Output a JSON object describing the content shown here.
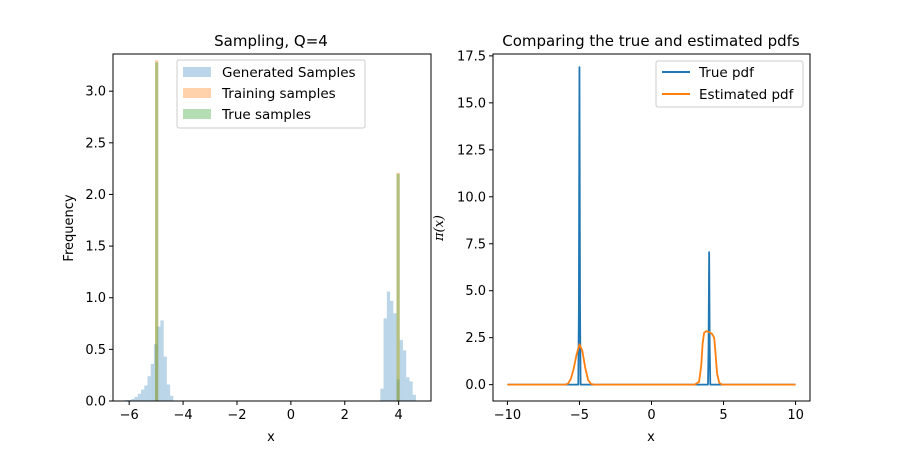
{
  "chart_data": [
    {
      "type": "histogram",
      "title": "Sampling, Q=4",
      "xlabel": "x",
      "ylabel": "Frequency",
      "xlim": [
        -6.6,
        5.2
      ],
      "ylim": [
        0,
        3.36
      ],
      "xticks": [
        -6,
        -4,
        -2,
        0,
        2,
        4
      ],
      "yticks": [
        0.0,
        0.5,
        1.0,
        1.5,
        2.0,
        2.5,
        3.0
      ],
      "legend_position": "upper center",
      "series": [
        {
          "name": "Generated Samples",
          "color": "#1f77b4",
          "opacity": 0.3,
          "bin_width": 0.12,
          "bins": [
            {
              "x": -6.1,
              "y": 0.01
            },
            {
              "x": -5.98,
              "y": 0.01
            },
            {
              "x": -5.86,
              "y": 0.02
            },
            {
              "x": -5.74,
              "y": 0.04
            },
            {
              "x": -5.62,
              "y": 0.07
            },
            {
              "x": -5.5,
              "y": 0.11
            },
            {
              "x": -5.38,
              "y": 0.15
            },
            {
              "x": -5.26,
              "y": 0.24
            },
            {
              "x": -5.14,
              "y": 0.36
            },
            {
              "x": -5.02,
              "y": 0.55
            },
            {
              "x": -4.9,
              "y": 0.72
            },
            {
              "x": -4.78,
              "y": 0.78
            },
            {
              "x": -4.66,
              "y": 0.43
            },
            {
              "x": -4.54,
              "y": 0.16
            },
            {
              "x": -4.42,
              "y": 0.05
            },
            {
              "x": 3.38,
              "y": 0.12
            },
            {
              "x": 3.5,
              "y": 0.8
            },
            {
              "x": 3.62,
              "y": 1.06
            },
            {
              "x": 3.74,
              "y": 0.97
            },
            {
              "x": 3.86,
              "y": 0.85
            },
            {
              "x": 3.98,
              "y": 0.21
            },
            {
              "x": 4.1,
              "y": 0.59
            },
            {
              "x": 4.22,
              "y": 0.49
            },
            {
              "x": 4.34,
              "y": 0.23
            },
            {
              "x": 4.46,
              "y": 0.19
            },
            {
              "x": 4.58,
              "y": 0.06
            }
          ]
        },
        {
          "name": "Training samples",
          "color": "#ff7f0e",
          "opacity": 0.35,
          "bin_width": 0.12,
          "bins": [
            {
              "x": -4.98,
              "y": 3.3
            },
            {
              "x": 3.98,
              "y": 2.21
            }
          ]
        },
        {
          "name": "True samples",
          "color": "#2ca02c",
          "opacity": 0.35,
          "bin_width": 0.12,
          "bins": [
            {
              "x": -4.98,
              "y": 3.28
            },
            {
              "x": 3.98,
              "y": 2.2
            }
          ]
        }
      ]
    },
    {
      "type": "line",
      "title": "Comparing the true and estimated pdfs",
      "xlabel": "x",
      "ylabel": "π(x)",
      "xlim": [
        -11,
        11
      ],
      "ylim": [
        -0.87,
        17.6
      ],
      "xticks": [
        -10,
        -5,
        0,
        5,
        10
      ],
      "yticks": [
        0.0,
        2.5,
        5.0,
        7.5,
        10.0,
        12.5,
        15.0,
        17.5
      ],
      "legend_position": "top-right",
      "series": [
        {
          "name": "True pdf",
          "color": "#1f77b4",
          "points": [
            [
              -10,
              0
            ],
            [
              -5.08,
              0
            ],
            [
              -5.04,
              4.0
            ],
            [
              -5.0,
              16.9
            ],
            [
              -4.96,
              4.0
            ],
            [
              -4.92,
              0
            ],
            [
              3.92,
              0
            ],
            [
              3.96,
              2.0
            ],
            [
              4.0,
              7.05
            ],
            [
              4.04,
              2.0
            ],
            [
              4.08,
              0
            ],
            [
              10,
              0
            ]
          ]
        },
        {
          "name": "Estimated pdf",
          "color": "#ff7f0e",
          "points": [
            [
              -10,
              0
            ],
            [
              -6.0,
              0
            ],
            [
              -5.8,
              0.05
            ],
            [
              -5.6,
              0.3
            ],
            [
              -5.4,
              0.85
            ],
            [
              -5.2,
              1.6
            ],
            [
              -5.0,
              2.15
            ],
            [
              -4.8,
              1.8
            ],
            [
              -4.6,
              0.9
            ],
            [
              -4.4,
              0.25
            ],
            [
              -4.2,
              0.04
            ],
            [
              -4.0,
              0
            ],
            [
              3.0,
              0
            ],
            [
              3.3,
              0.15
            ],
            [
              3.45,
              1.0
            ],
            [
              3.55,
              2.2
            ],
            [
              3.65,
              2.75
            ],
            [
              3.8,
              2.85
            ],
            [
              4.0,
              2.8
            ],
            [
              4.2,
              2.7
            ],
            [
              4.35,
              2.5
            ],
            [
              4.45,
              1.6
            ],
            [
              4.55,
              0.6
            ],
            [
              4.7,
              0.1
            ],
            [
              4.9,
              0
            ],
            [
              10,
              0
            ]
          ]
        }
      ]
    }
  ]
}
